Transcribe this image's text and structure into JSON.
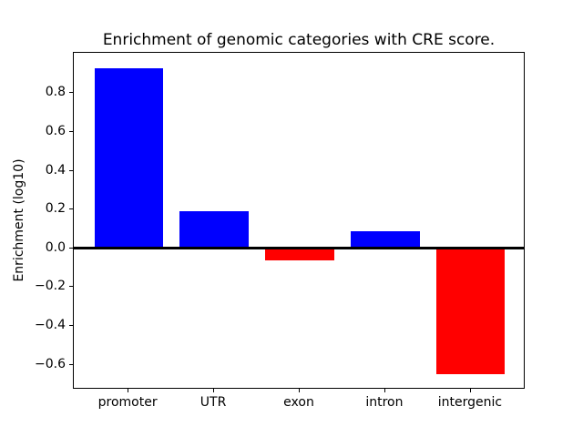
{
  "chart_data": {
    "type": "bar",
    "title": "Enrichment of genomic categories with CRE score.",
    "xlabel": "",
    "ylabel": "Enrichment (log10)",
    "categories": [
      "promoter",
      "UTR",
      "exon",
      "intron",
      "intergenic"
    ],
    "values": [
      0.93,
      0.19,
      -0.06,
      0.09,
      -0.65
    ],
    "bar_colors": [
      "#0000ff",
      "#0000ff",
      "#ff0000",
      "#0000ff",
      "#ff0000"
    ],
    "positive_color": "#0000ff",
    "negative_color": "#ff0000",
    "bar_width": 0.8,
    "xlim": [
      -0.64,
      4.64
    ],
    "ylim": [
      -0.729,
      1.009
    ],
    "yticks": [
      0.8,
      0.6,
      0.4,
      0.2,
      0.0,
      -0.2,
      -0.4,
      -0.6
    ],
    "ytick_labels": [
      "0.8",
      "0.6",
      "0.4",
      "0.2",
      "0.0",
      "−0.2",
      "−0.4",
      "−0.6"
    ],
    "grid": false,
    "legend": false,
    "zero_line": true,
    "background": "#ffffff",
    "axis_color": "#000000"
  }
}
